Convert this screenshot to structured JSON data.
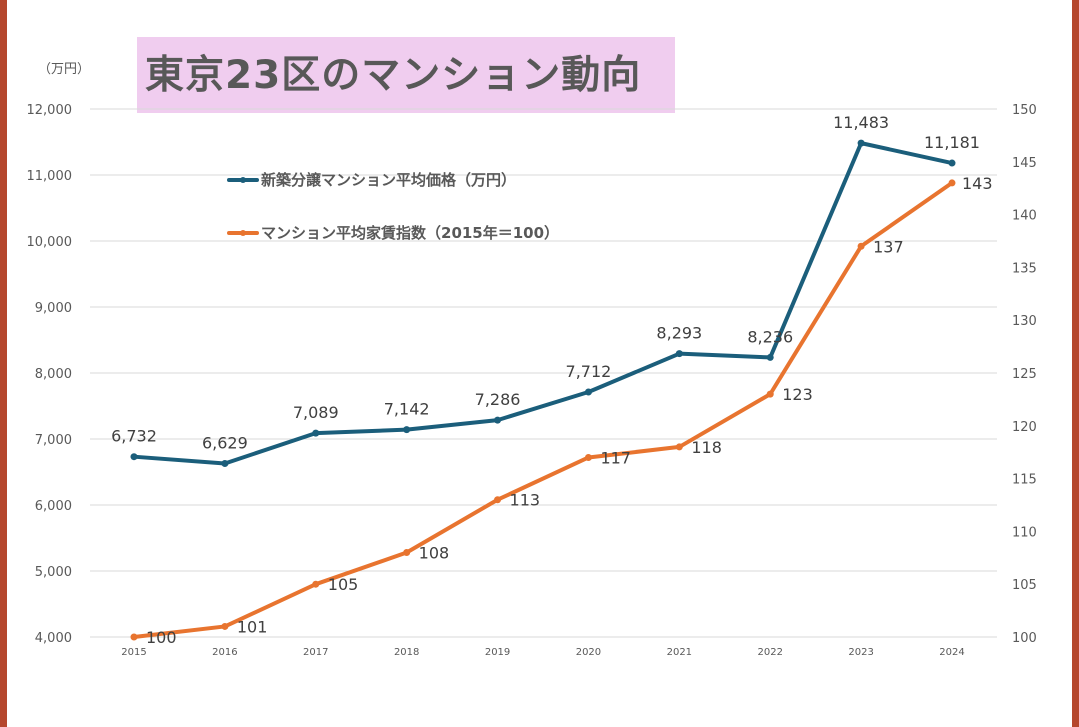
{
  "title": "東京23区のマンション動向",
  "unit_label": "（万円）",
  "chart_data": {
    "type": "line",
    "title": "東京23区のマンション動向",
    "categories": [
      "2015",
      "2016",
      "2017",
      "2018",
      "2019",
      "2020",
      "2021",
      "2022",
      "2023",
      "2024"
    ],
    "y_left": {
      "label": "（万円）",
      "range": [
        4000,
        12000
      ],
      "ticks": [
        4000,
        5000,
        6000,
        7000,
        8000,
        9000,
        10000,
        11000,
        12000
      ],
      "tick_labels": [
        "4,000",
        "5,000",
        "6,000",
        "7,000",
        "8,000",
        "9,000",
        "10,000",
        "11,000",
        "12,000"
      ]
    },
    "y_right": {
      "range": [
        100,
        150
      ],
      "ticks": [
        100,
        105,
        110,
        115,
        120,
        125,
        130,
        135,
        140,
        145,
        150
      ],
      "tick_labels": [
        "100",
        "105",
        "110",
        "115",
        "120",
        "125",
        "130",
        "135",
        "140",
        "145",
        "150"
      ]
    },
    "grid": true,
    "legend_position": "upper-left-inside",
    "series": [
      {
        "name": "新築分譲マンション平均価格（万円）",
        "axis": "left",
        "color": "#1b5e7b",
        "values": [
          6732,
          6629,
          7089,
          7142,
          7286,
          7712,
          8293,
          8236,
          11483,
          11181
        ],
        "labels": [
          "6,732",
          "6,629",
          "7,089",
          "7,142",
          "7,286",
          "7,712",
          "8,293",
          "8,236",
          "11,483",
          "11,181"
        ]
      },
      {
        "name": "マンション平均家賃指数（2015年＝100）",
        "axis": "right",
        "color": "#e8742f",
        "values": [
          100,
          101,
          105,
          108,
          113,
          117,
          118,
          123,
          137,
          143
        ],
        "labels": [
          "100",
          "101",
          "105",
          "108",
          "113",
          "117",
          "118",
          "123",
          "137",
          "143"
        ]
      }
    ]
  }
}
